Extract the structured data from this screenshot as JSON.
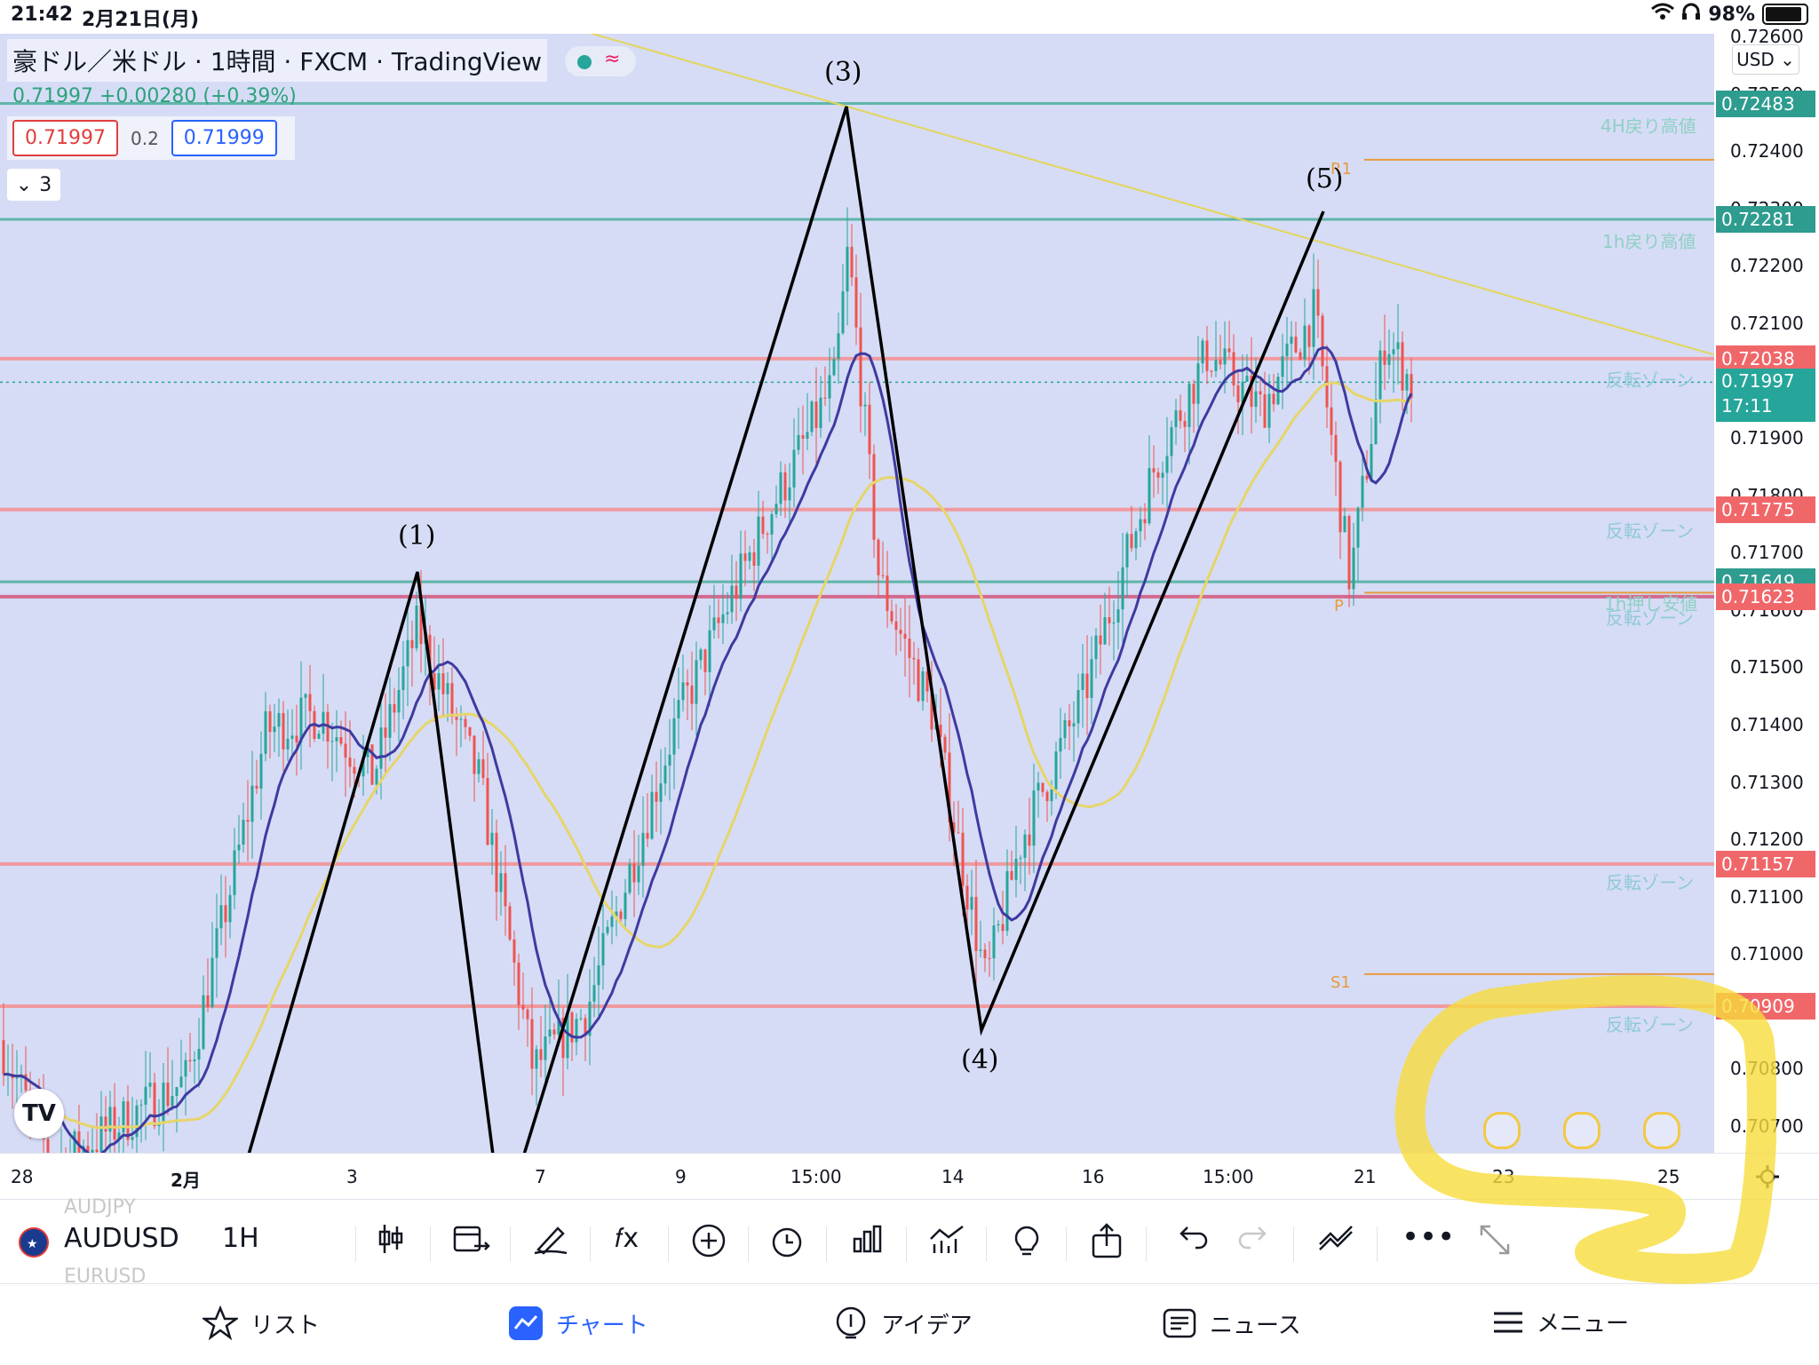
{
  "status_bar": {
    "time": "21:42",
    "date": "2月21日(月)",
    "battery": "98%"
  },
  "legend": {
    "title": "豪ドル／米ドル · 1時間 · FXCM · TradingView",
    "price_line": "0.71997 +0.00280 (+0.39%)",
    "bid": "0.71997",
    "spread": "0.2",
    "ask": "0.71999",
    "indicators_count": "3"
  },
  "currency_selector": "USD",
  "price_axis": {
    "ticks": [
      "0.72600",
      "0.72500",
      "0.72400",
      "0.72300",
      "0.72200",
      "0.72100",
      "0.72000",
      "0.71900",
      "0.71800",
      "0.71700",
      "0.71600",
      "0.71500",
      "0.71400",
      "0.71300",
      "0.71200",
      "0.71100",
      "0.71000",
      "0.70900",
      "0.70800",
      "0.70700"
    ],
    "badges": [
      {
        "value": "0.72483",
        "color": "#2e9c8f"
      },
      {
        "value": "0.72281",
        "color": "#2e9c8f"
      },
      {
        "value": "0.72038",
        "color": "#f0676a"
      },
      {
        "value": "0.71997",
        "sub": "17:11",
        "color": "#26a69a"
      },
      {
        "value": "0.71775",
        "color": "#f0676a"
      },
      {
        "value": "0.71649",
        "color": "#2e9c8f"
      },
      {
        "value": "0.71623",
        "color": "#f0676a"
      },
      {
        "value": "0.71157",
        "color": "#f0676a"
      },
      {
        "value": "0.70909",
        "color": "#f0676a"
      }
    ]
  },
  "line_labels": {
    "h4_high": "4H戻り高値",
    "h1_high": "1h戻り高値",
    "reversal": "反転ゾーン",
    "h1_low": "1h押し安値",
    "r1": "R1",
    "p": "P",
    "s1": "S1"
  },
  "wave_labels": [
    "(1)",
    "(3)",
    "(4)",
    "(5)"
  ],
  "time_axis": [
    "28",
    "2月",
    "3",
    "7",
    "9",
    "15:00",
    "14",
    "16",
    "15:00",
    "21",
    "23",
    "25"
  ],
  "toolbar": {
    "symbol": "AUDUSD",
    "symbol_above": "AUDJPY",
    "symbol_below": "EURUSD",
    "interval": "1H"
  },
  "bottom_nav": [
    {
      "label": "リスト",
      "icon": "star-icon"
    },
    {
      "label": "チャート",
      "icon": "chart-icon",
      "active": true
    },
    {
      "label": "アイデア",
      "icon": "lightbulb-icon"
    },
    {
      "label": "ニュース",
      "icon": "news-icon"
    },
    {
      "label": "メニュー",
      "icon": "menu-icon"
    }
  ],
  "colors": {
    "chart_bg": "#d6dcf6",
    "up_candle": "#26a69a",
    "down_candle": "#ef5350",
    "ma_fast": "#3f3aa0",
    "ma_slow": "#e6d56a",
    "zone_line": "#f09a9f",
    "high_line": "#5fb5a9",
    "highlight": "#f7dc3c"
  }
}
